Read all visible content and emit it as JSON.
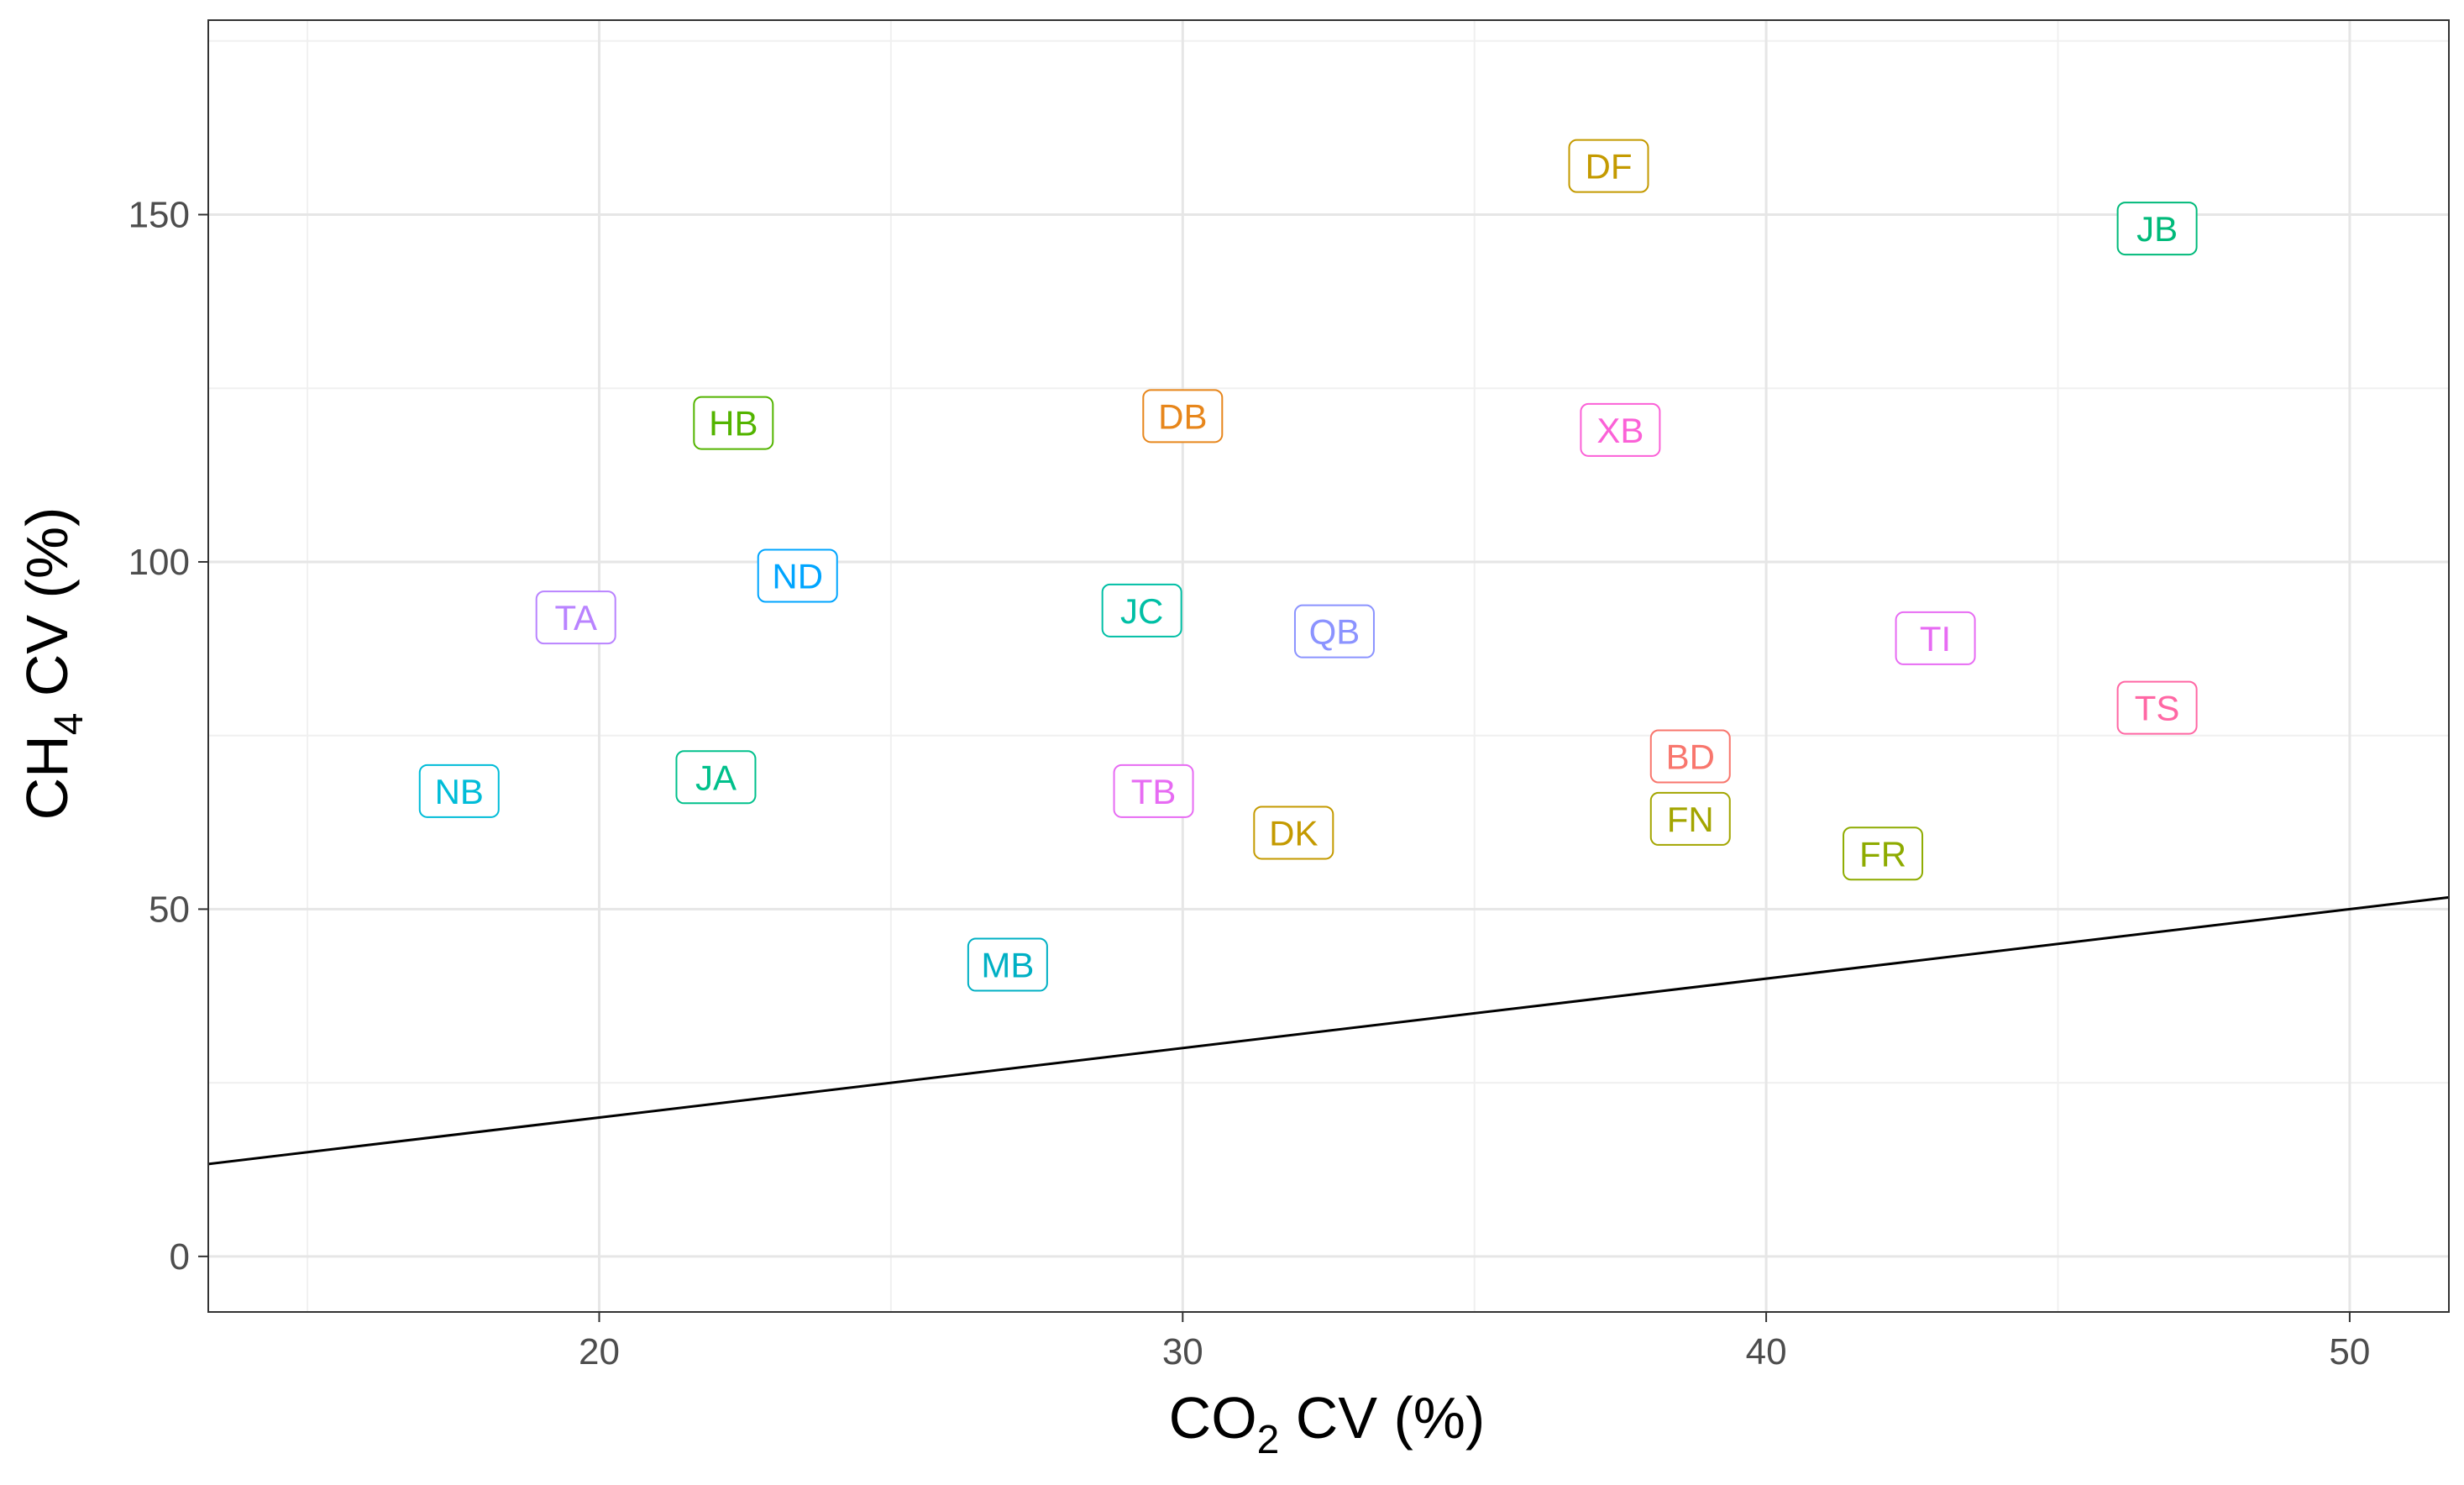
{
  "chart_data": {
    "type": "scatter",
    "xlabel": {
      "main": "CO",
      "sub": "2",
      "rest": " CV (%)"
    },
    "ylabel": {
      "main": "CH",
      "sub": "4",
      "rest": " CV (%)"
    },
    "xlim": [
      13.3,
      51.7
    ],
    "ylim": [
      -8,
      178
    ],
    "x_ticks": [
      20,
      30,
      40,
      50
    ],
    "y_ticks": [
      0,
      50,
      100,
      150
    ],
    "x_minor": [
      15,
      25,
      35,
      45
    ],
    "y_minor": [
      25,
      75,
      125,
      175
    ],
    "grid": true,
    "reference_line": {
      "slope": 1,
      "intercept": 0
    },
    "points": [
      {
        "label": "DF",
        "x": 37.3,
        "y": 157,
        "color": "#C49A00"
      },
      {
        "label": "JB",
        "x": 46.7,
        "y": 148,
        "color": "#00BA7A"
      },
      {
        "label": "DB",
        "x": 30.0,
        "y": 121,
        "color": "#E7861B"
      },
      {
        "label": "HB",
        "x": 22.3,
        "y": 120,
        "color": "#53B400"
      },
      {
        "label": "XB",
        "x": 37.5,
        "y": 119,
        "color": "#FB61D7"
      },
      {
        "label": "ND",
        "x": 23.4,
        "y": 98,
        "color": "#00A5FF"
      },
      {
        "label": "TA",
        "x": 19.6,
        "y": 92,
        "color": "#B983FF"
      },
      {
        "label": "JC",
        "x": 29.3,
        "y": 93,
        "color": "#00BFA5"
      },
      {
        "label": "QB",
        "x": 32.6,
        "y": 90,
        "color": "#8B93FF"
      },
      {
        "label": "TI",
        "x": 42.9,
        "y": 89,
        "color": "#E76BF3"
      },
      {
        "label": "TS",
        "x": 46.7,
        "y": 79,
        "color": "#FF67A4"
      },
      {
        "label": "BD",
        "x": 38.7,
        "y": 72,
        "color": "#F8766D"
      },
      {
        "label": "JA",
        "x": 22.0,
        "y": 69,
        "color": "#00C08B"
      },
      {
        "label": "NB",
        "x": 17.6,
        "y": 67,
        "color": "#00BCD8"
      },
      {
        "label": "TB",
        "x": 29.5,
        "y": 67,
        "color": "#E76BF3"
      },
      {
        "label": "FN",
        "x": 38.7,
        "y": 63,
        "color": "#A3A500"
      },
      {
        "label": "DK",
        "x": 31.9,
        "y": 61,
        "color": "#C49A00"
      },
      {
        "label": "FR",
        "x": 42.0,
        "y": 58,
        "color": "#8EAB00"
      },
      {
        "label": "MB",
        "x": 27.0,
        "y": 42,
        "color": "#00B0C4"
      }
    ]
  }
}
